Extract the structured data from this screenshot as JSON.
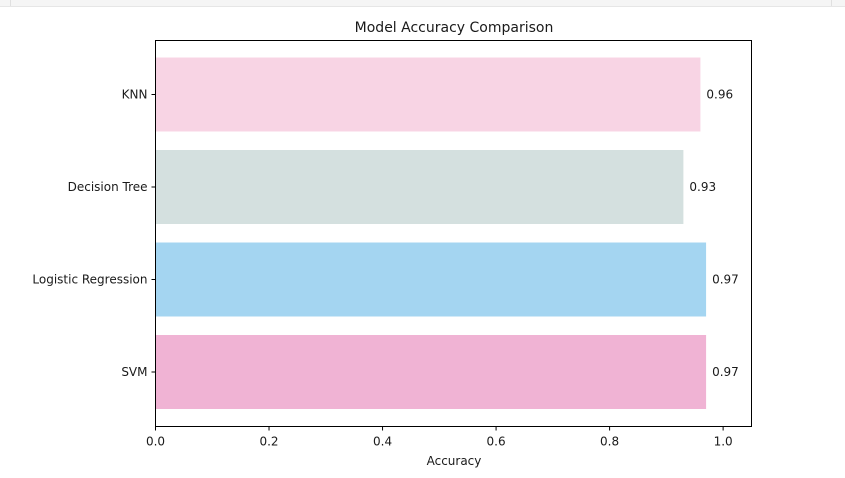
{
  "chart_data": {
    "type": "bar",
    "orientation": "horizontal",
    "title": "Model Accuracy Comparison",
    "xlabel": "Accuracy",
    "ylabel": "",
    "xlim": [
      0,
      1.05
    ],
    "x_ticks": [
      "0.0",
      "0.2",
      "0.4",
      "0.6",
      "0.8",
      "1.0"
    ],
    "categories": [
      "SVM",
      "Logistic Regression",
      "Decision Tree",
      "KNN"
    ],
    "values": [
      0.97,
      0.97,
      0.93,
      0.96
    ],
    "value_labels": [
      "0.97",
      "0.97",
      "0.93",
      "0.96"
    ],
    "colors": [
      "#f0b3d4",
      "#a4d5f1",
      "#d4e0df",
      "#f8d4e4"
    ],
    "grid": false,
    "legend": "none"
  }
}
